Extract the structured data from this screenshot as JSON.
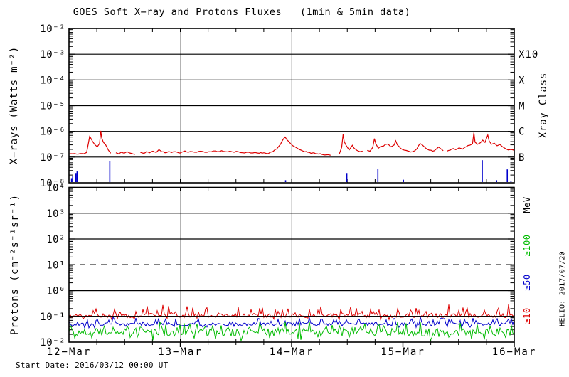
{
  "title": "GOES Soft X−ray and Protons Fluxes   (1min & 5min data)",
  "start_date": "Start Date: 2016/03/12 00:00 UT",
  "watermark": "HELIO: 2017/07/20",
  "colors": {
    "xray_long": "#dd0000",
    "xray_short_bursts": "#0000cc",
    "protons_ge10": "#dd0000",
    "protons_ge50": "#0000cc",
    "protons_ge100": "#00bb00",
    "day_gridline": "#b3b3b3",
    "axis": "#000000"
  },
  "chart_data": {
    "type": "line",
    "title": "GOES Soft X−ray and Protons Fluxes (1min & 5min data)",
    "x_axis": {
      "start": "2016/03/12 00:00 UT",
      "span_hours": 96,
      "day_tick_labels": [
        "12−Mar",
        "13−Mar",
        "14−Mar",
        "15−Mar",
        "16−Mar"
      ],
      "minor_tick_hours": 6
    },
    "xray": {
      "y_label": "X−rays (Watts m⁻²)",
      "right_label": "Xray Class",
      "scale": "log",
      "y_exp_range": [
        -8,
        -2
      ],
      "y_tick_labels": [
        "10⁻²",
        "10⁻³",
        "10⁻⁴",
        "10⁻⁵",
        "10⁻⁶",
        "10⁻⁷",
        "10⁻⁸"
      ],
      "classes": [
        {
          "label": "X10",
          "log": -3
        },
        {
          "label": "X",
          "log": -4
        },
        {
          "label": "M",
          "log": -5
        },
        {
          "label": "C",
          "log": -6
        },
        {
          "label": "B",
          "log": -7
        }
      ],
      "series": [
        {
          "name": "xray-long-channel",
          "color": "#dd0000",
          "unit": "Watts m⁻²",
          "description": "baseline ~1.3e-7 with flares peaking near C1",
          "jitter_log": 0.022,
          "points_h_log": [
            [
              0,
              -6.88
            ],
            [
              0.8,
              -6.87
            ],
            [
              1.6,
              -6.88
            ],
            [
              2.4,
              -6.86
            ],
            [
              3.2,
              -6.87
            ],
            [
              3.8,
              -6.82
            ],
            [
              4.2,
              -6.45
            ],
            [
              4.45,
              -6.2
            ],
            [
              4.7,
              -6.26
            ],
            [
              5.1,
              -6.4
            ],
            [
              5.6,
              -6.52
            ],
            [
              6.1,
              -6.6
            ],
            [
              6.6,
              -6.47
            ],
            [
              6.85,
              -5.98
            ],
            [
              7.05,
              -6.25
            ],
            [
              7.4,
              -6.42
            ],
            [
              7.9,
              -6.52
            ],
            [
              8.5,
              -6.73
            ],
            [
              9.0,
              -6.85
            ],
            null,
            [
              10.1,
              -6.83
            ],
            [
              10.7,
              -6.87
            ],
            [
              11.3,
              -6.81
            ],
            [
              11.9,
              -6.85
            ],
            [
              12.5,
              -6.79
            ],
            [
              13.1,
              -6.84
            ],
            [
              13.7,
              -6.87
            ],
            [
              14.2,
              -6.9
            ],
            null,
            [
              15.4,
              -6.81
            ],
            [
              16.0,
              -6.85
            ],
            [
              16.7,
              -6.79
            ],
            [
              17.4,
              -6.83
            ],
            [
              18.1,
              -6.77
            ],
            [
              18.8,
              -6.82
            ],
            [
              19.4,
              -6.71
            ],
            [
              20.0,
              -6.79
            ],
            [
              20.7,
              -6.83
            ],
            [
              21.4,
              -6.79
            ],
            [
              22.1,
              -6.82
            ],
            [
              22.9,
              -6.79
            ],
            [
              23.6,
              -6.83
            ],
            [
              24.3,
              -6.81
            ],
            [
              25.0,
              -6.76
            ],
            [
              25.7,
              -6.81
            ],
            [
              26.6,
              -6.79
            ],
            [
              27.5,
              -6.81
            ],
            [
              28.4,
              -6.77
            ],
            [
              29.3,
              -6.81
            ],
            [
              30.2,
              -6.79
            ],
            [
              31.1,
              -6.76
            ],
            [
              32.0,
              -6.79
            ],
            [
              32.9,
              -6.75
            ],
            [
              33.8,
              -6.79
            ],
            [
              34.7,
              -6.77
            ],
            [
              35.6,
              -6.81
            ],
            [
              36.5,
              -6.79
            ],
            [
              37.4,
              -6.83
            ],
            [
              38.3,
              -6.81
            ],
            [
              39.2,
              -6.84
            ],
            [
              40.1,
              -6.82
            ],
            [
              41.0,
              -6.85
            ],
            [
              42.0,
              -6.83
            ],
            [
              43.0,
              -6.86
            ],
            [
              44.0,
              -6.78
            ],
            [
              44.8,
              -6.68
            ],
            [
              45.6,
              -6.5
            ],
            [
              46.3,
              -6.28
            ],
            [
              46.6,
              -6.22
            ],
            [
              47.0,
              -6.33
            ],
            [
              47.8,
              -6.48
            ],
            [
              48.7,
              -6.6
            ],
            [
              49.6,
              -6.7
            ],
            [
              50.5,
              -6.77
            ],
            [
              51.5,
              -6.81
            ],
            [
              52.5,
              -6.84
            ],
            [
              53.5,
              -6.87
            ],
            [
              54.5,
              -6.89
            ],
            [
              55.5,
              -6.91
            ],
            [
              56.4,
              -6.93
            ],
            null,
            [
              58.3,
              -6.87
            ],
            [
              58.8,
              -6.62
            ],
            [
              59.1,
              -6.12
            ],
            [
              59.35,
              -6.4
            ],
            [
              59.8,
              -6.56
            ],
            [
              60.4,
              -6.72
            ],
            [
              61.1,
              -6.54
            ],
            [
              61.5,
              -6.66
            ],
            [
              62.1,
              -6.74
            ],
            [
              62.7,
              -6.79
            ],
            [
              63.3,
              -6.77
            ],
            null,
            [
              64.3,
              -6.74
            ],
            [
              64.9,
              -6.77
            ],
            [
              65.5,
              -6.62
            ],
            [
              65.85,
              -6.28
            ],
            [
              66.15,
              -6.48
            ],
            [
              66.7,
              -6.66
            ],
            [
              67.5,
              -6.58
            ],
            [
              68.2,
              -6.51
            ],
            [
              68.8,
              -6.49
            ],
            [
              69.4,
              -6.6
            ],
            [
              70.1,
              -6.53
            ],
            [
              70.45,
              -6.37
            ],
            [
              70.8,
              -6.53
            ],
            [
              71.5,
              -6.66
            ],
            [
              72.3,
              -6.73
            ],
            [
              73.2,
              -6.77
            ],
            [
              74.1,
              -6.79
            ],
            [
              75.0,
              -6.68
            ],
            [
              75.7,
              -6.47
            ],
            [
              76.2,
              -6.53
            ],
            [
              76.9,
              -6.65
            ],
            [
              77.7,
              -6.73
            ],
            [
              78.4,
              -6.77
            ],
            [
              79.1,
              -6.7
            ],
            [
              79.7,
              -6.61
            ],
            [
              80.2,
              -6.68
            ],
            [
              80.7,
              -6.75
            ],
            null,
            [
              81.5,
              -6.77
            ],
            [
              82.2,
              -6.73
            ],
            [
              82.9,
              -6.67
            ],
            [
              83.4,
              -6.71
            ],
            [
              84.1,
              -6.64
            ],
            [
              84.9,
              -6.69
            ],
            [
              85.7,
              -6.59
            ],
            [
              86.4,
              -6.54
            ],
            [
              87.0,
              -6.49
            ],
            [
              87.3,
              -6.05
            ],
            [
              87.55,
              -6.42
            ],
            [
              88.1,
              -6.5
            ],
            [
              88.7,
              -6.44
            ],
            [
              89.2,
              -6.34
            ],
            [
              89.7,
              -6.43
            ],
            [
              90.3,
              -6.14
            ],
            [
              90.6,
              -6.38
            ],
            [
              91.1,
              -6.5
            ],
            [
              91.7,
              -6.46
            ],
            [
              92.3,
              -6.56
            ],
            [
              92.9,
              -6.51
            ],
            [
              93.5,
              -6.6
            ],
            [
              94.1,
              -6.67
            ],
            [
              94.7,
              -6.72
            ],
            [
              95.3,
              -6.7
            ],
            [
              96,
              -6.74
            ]
          ]
        },
        {
          "name": "xray-short-channel-bursts",
          "color": "#0000cc",
          "unit": "Watts m⁻²",
          "base_log": -8,
          "spikes_h_log": [
            [
              0.55,
              -7.82
            ],
            [
              0.8,
              -7.75
            ],
            [
              1.5,
              -7.62
            ],
            [
              1.75,
              -7.56
            ],
            [
              8.8,
              -7.17
            ],
            [
              46.7,
              -7.9
            ],
            [
              59.9,
              -7.62
            ],
            [
              66.6,
              -7.45
            ],
            [
              72.1,
              -7.88
            ],
            [
              89.1,
              -7.12
            ],
            [
              92.2,
              -7.9
            ],
            [
              94.5,
              -7.48
            ],
            [
              95.3,
              -7.92
            ]
          ]
        }
      ]
    },
    "protons": {
      "y_label": "Protons (cm⁻²s⁻¹sr⁻¹)",
      "right_label": "MeV",
      "scale": "log",
      "y_exp_range": [
        -2,
        4
      ],
      "y_tick_labels": [
        "10⁴",
        "10³",
        "10²",
        "10¹",
        "10⁰",
        "10⁻¹",
        "10⁻²"
      ],
      "event_threshold": {
        "log": 1,
        "style": "dashed"
      },
      "series": [
        {
          "name": "≥10",
          "color": "#dd0000",
          "level": "noisy band ~1×10⁻¹",
          "base_log": -0.97,
          "noise_log": 0.08,
          "spike_log": 0.38,
          "spike_prob": 0.3,
          "clamp": [
            -1.15,
            -0.52
          ],
          "seed": 11
        },
        {
          "name": "≥50",
          "color": "#0000cc",
          "level": "noisy band ~5×10⁻²",
          "base_log": -1.31,
          "noise_log": 0.06,
          "spike_log": 0.26,
          "spike_prob": 0.28,
          "clamp": [
            -1.46,
            -1.0
          ],
          "seed": 23
        },
        {
          "name": "≥100",
          "color": "#00bb00",
          "level": "noisy band ~2.5×10⁻²",
          "base_log": -1.62,
          "noise_log": 0.15,
          "spike_log": 0.32,
          "spike_prob": 0.3,
          "clamp": [
            -2.0,
            -1.22
          ],
          "seed": 37
        }
      ]
    }
  }
}
